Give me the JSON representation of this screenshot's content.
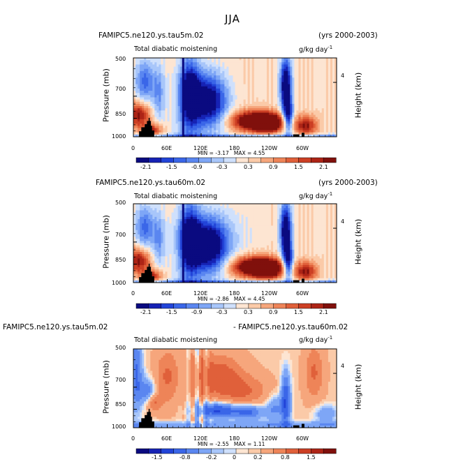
{
  "figure": {
    "title": "JJA"
  },
  "chart_data": [
    {
      "type": "heatmap",
      "case_left": "FAMIPC5.ne120.ys.tau5m.02",
      "case_right": "(yrs 2000-2003)",
      "variable": "Total diabatic moistening",
      "units": "g/kg day",
      "units_exp": "-1",
      "ylabel": "Pressure (mb)",
      "ylabel_right": "Height (km)",
      "yticks": [
        "500",
        "700",
        "850",
        "1000"
      ],
      "ytick_values": [
        500,
        700,
        850,
        1000
      ],
      "right_ticks": [
        "4"
      ],
      "xticks": [
        "0",
        "60E",
        "120E",
        "180",
        "120W",
        "60W"
      ],
      "xtick_values": [
        0,
        60,
        120,
        180,
        240,
        300
      ],
      "xlim": [
        0,
        360
      ],
      "ylim": [
        1000,
        500
      ],
      "min_label": "MIN =",
      "min_value": "-3.17",
      "max_label": "MAX =",
      "max_value": "4.55",
      "colorbar_labels": [
        "-2.1",
        "-1.5",
        "-0.9",
        "-0.3",
        "0.3",
        "0.9",
        "1.5",
        "2.1"
      ],
      "field": "full"
    },
    {
      "type": "heatmap",
      "case_left": "FAMIPC5.ne120.ys.tau60m.02",
      "case_right": "(yrs 2000-2003)",
      "variable": "Total diabatic moistening",
      "units": "g/kg day",
      "units_exp": "-1",
      "ylabel": "Pressure (mb)",
      "ylabel_right": "Height (km)",
      "yticks": [
        "500",
        "700",
        "850",
        "1000"
      ],
      "ytick_values": [
        500,
        700,
        850,
        1000
      ],
      "right_ticks": [
        "4"
      ],
      "xticks": [
        "0",
        "60E",
        "120E",
        "180",
        "120W",
        "60W"
      ],
      "xtick_values": [
        0,
        60,
        120,
        180,
        240,
        300
      ],
      "xlim": [
        0,
        360
      ],
      "ylim": [
        1000,
        500
      ],
      "min_label": "MIN =",
      "min_value": "-2.86",
      "max_label": "MAX =",
      "max_value": "4.45",
      "colorbar_labels": [
        "-2.1",
        "-1.5",
        "-0.9",
        "-0.3",
        "0.3",
        "0.9",
        "1.5",
        "2.1"
      ],
      "field": "full"
    },
    {
      "type": "heatmap",
      "case_left": "FAMIPC5.ne120.ys.tau5m.02",
      "case_right": "- FAMIPC5.ne120.ys.tau60m.02",
      "variable": "Total diabatic moistening",
      "units": "g/kg day",
      "units_exp": "-1",
      "ylabel": "Pressure (mb)",
      "ylabel_right": "Height (km)",
      "yticks": [
        "500",
        "700",
        "850",
        "1000"
      ],
      "ytick_values": [
        500,
        700,
        850,
        1000
      ],
      "right_ticks": [
        "4"
      ],
      "xticks": [
        "0",
        "60E",
        "120E",
        "180",
        "120W",
        "60W"
      ],
      "xtick_values": [
        0,
        60,
        120,
        180,
        240,
        300
      ],
      "xlim": [
        0,
        360
      ],
      "ylim": [
        1000,
        500
      ],
      "min_label": "MIN =",
      "min_value": "-2.55",
      "max_label": "MAX =",
      "max_value": "1.11",
      "colorbar_labels": [
        "-1.5",
        "-0.8",
        "-0.2",
        "0",
        "0.2",
        "0.8",
        "1.5"
      ],
      "field": "diff"
    }
  ],
  "colors": {
    "neg": [
      "#0a0a80",
      "#1622b4",
      "#2244d8",
      "#3a66e8",
      "#5a86f0",
      "#7ea6f6",
      "#a8c6fa",
      "#cfe0fc"
    ],
    "pos": [
      "#fde5d2",
      "#fbcaa8",
      "#f6a67c",
      "#ee8458",
      "#e0603a",
      "#cc3f24",
      "#ad2416",
      "#80100c"
    ],
    "terrain": "#000000"
  }
}
